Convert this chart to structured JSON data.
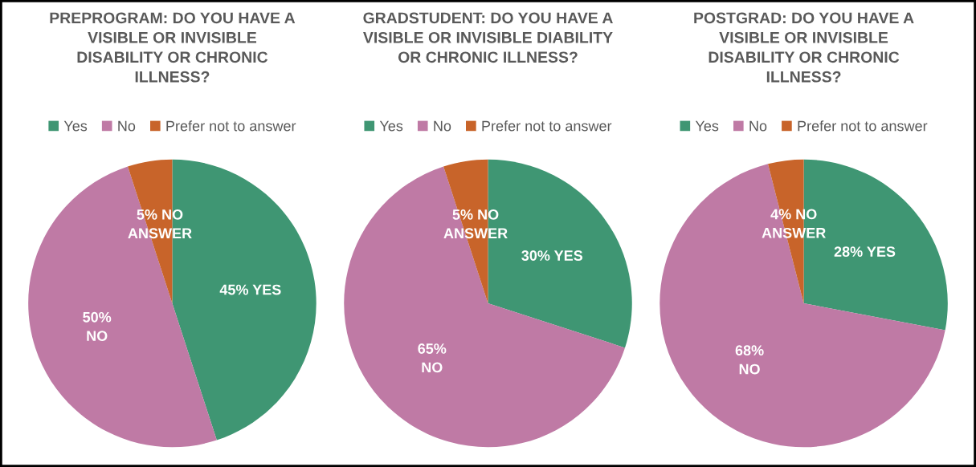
{
  "chart_data": [
    {
      "type": "pie",
      "title": "PREPROGRAM: DO YOU HAVE A\nVISIBLE OR INVISIBLE\nDISABILITY OR CHRONIC\nILLNESS?",
      "categories": [
        "Yes",
        "No",
        "Prefer not to answer"
      ],
      "values": [
        45,
        50,
        5
      ],
      "colors": [
        "#3f9673",
        "#bf7aa5",
        "#c8642a"
      ],
      "value_labels": [
        "45% YES",
        "50%\nNO",
        "5% NO\nANSWER"
      ],
      "legend": "top"
    },
    {
      "type": "pie",
      "title": "GRADSTUDENT: DO YOU HAVE A\nVISIBLE OR INVISIBLE DIABILITY\nOR CHRONIC ILLNESS?",
      "categories": [
        "Yes",
        "No",
        "Prefer not to answer"
      ],
      "values": [
        30,
        65,
        5
      ],
      "colors": [
        "#3f9673",
        "#bf7aa5",
        "#c8642a"
      ],
      "value_labels": [
        "30% YES",
        "65%\nNO",
        "5% NO\nANSWER"
      ],
      "legend": "top"
    },
    {
      "type": "pie",
      "title": "POSTGRAD: DO YOU HAVE A\nVISIBLE OR INVISIBLE\nDISABILITY OR CHRONIC\nILLNESS?",
      "categories": [
        "Yes",
        "No",
        "Prefer not to answer"
      ],
      "values": [
        28,
        68,
        4
      ],
      "colors": [
        "#3f9673",
        "#bf7aa5",
        "#c8642a"
      ],
      "value_labels": [
        "28% YES",
        "68%\nNO",
        "4% NO\nANSWER"
      ],
      "legend": "top"
    }
  ]
}
